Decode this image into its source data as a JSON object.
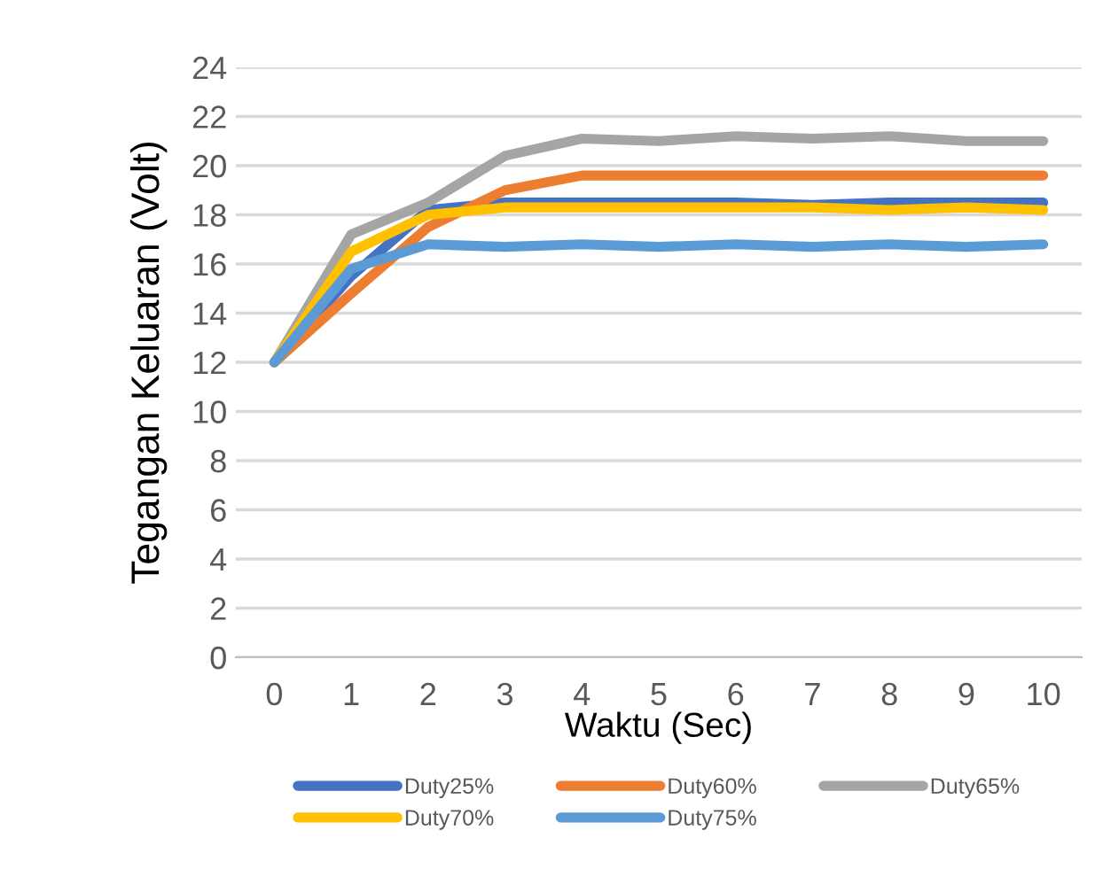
{
  "chart_data": {
    "type": "line",
    "xlabel": "Waktu (Sec)",
    "ylabel": "Tegangan Keluaran (Volt)",
    "categories": [
      "0",
      "1",
      "2",
      "3",
      "4",
      "5",
      "6",
      "7",
      "8",
      "9",
      "10"
    ],
    "series": [
      {
        "name": "Duty25%",
        "color": "#4472c4",
        "values": [
          12,
          15.5,
          18.2,
          18.5,
          18.5,
          18.5,
          18.5,
          18.4,
          18.5,
          18.5,
          18.5
        ]
      },
      {
        "name": "Duty60%",
        "color": "#ed7d31",
        "values": [
          12,
          14.8,
          17.5,
          19.0,
          19.6,
          19.6,
          19.6,
          19.6,
          19.6,
          19.6,
          19.6
        ]
      },
      {
        "name": "Duty65%",
        "color": "#a5a5a5",
        "values": [
          12,
          17.2,
          18.5,
          20.4,
          21.1,
          21.0,
          21.2,
          21.1,
          21.2,
          21.0,
          21.0
        ]
      },
      {
        "name": "Duty70%",
        "color": "#ffc000",
        "values": [
          12,
          16.5,
          18.0,
          18.3,
          18.3,
          18.3,
          18.3,
          18.3,
          18.2,
          18.3,
          18.2
        ]
      },
      {
        "name": "Duty75%",
        "color": "#5b9bd5",
        "values": [
          12,
          15.8,
          16.8,
          16.7,
          16.8,
          16.7,
          16.8,
          16.7,
          16.8,
          16.7,
          16.8
        ]
      }
    ],
    "ylim": [
      0,
      24
    ],
    "yticks": [
      0,
      2,
      4,
      6,
      8,
      10,
      12,
      14,
      16,
      18,
      20,
      22,
      24
    ],
    "grid": "y",
    "legend": "bottom",
    "marker": "none",
    "line_style": "solid"
  }
}
